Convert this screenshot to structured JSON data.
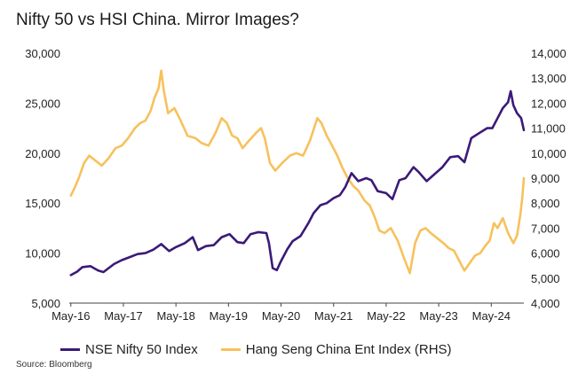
{
  "title": "Nifty 50 vs HSI China. Mirror Images?",
  "source": "Source: Bloomberg",
  "chart_data": {
    "type": "line",
    "title": "Nifty 50 vs HSI China. Mirror Images?",
    "x_ticks": [
      "May-16",
      "May-17",
      "May-18",
      "May-19",
      "May-20",
      "May-21",
      "May-22",
      "May-23",
      "May-24"
    ],
    "x_range": [
      2016.3,
      2024.95
    ],
    "y_left": {
      "range": [
        5000,
        30000
      ],
      "ticks": [
        "5,000",
        "10,000",
        "15,000",
        "20,000",
        "25,000",
        "30,000"
      ],
      "tick_values": [
        5000,
        10000,
        15000,
        20000,
        25000,
        30000
      ]
    },
    "y_right": {
      "range": [
        4000,
        14000
      ],
      "ticks": [
        "4,000",
        "5,000",
        "6,000",
        "7,000",
        "8,000",
        "9,000",
        "10,000",
        "11,000",
        "12,000",
        "13,000",
        "14,000"
      ],
      "tick_values": [
        4000,
        5000,
        6000,
        7000,
        8000,
        9000,
        10000,
        11000,
        12000,
        13000,
        14000
      ]
    },
    "grid": false,
    "legend_position": "bottom",
    "series": [
      {
        "name": "NSE Nifty 50 Index",
        "axis": "left",
        "color": "#3b1a78",
        "points": [
          [
            2016.33,
            7800
          ],
          [
            2016.45,
            8150
          ],
          [
            2016.55,
            8600
          ],
          [
            2016.7,
            8700
          ],
          [
            2016.85,
            8250
          ],
          [
            2016.95,
            8100
          ],
          [
            2017.05,
            8500
          ],
          [
            2017.15,
            8900
          ],
          [
            2017.3,
            9300
          ],
          [
            2017.45,
            9600
          ],
          [
            2017.6,
            9900
          ],
          [
            2017.75,
            10000
          ],
          [
            2017.9,
            10350
          ],
          [
            2018.05,
            10900
          ],
          [
            2018.2,
            10200
          ],
          [
            2018.33,
            10600
          ],
          [
            2018.5,
            11000
          ],
          [
            2018.65,
            11600
          ],
          [
            2018.75,
            10300
          ],
          [
            2018.9,
            10700
          ],
          [
            2019.05,
            10800
          ],
          [
            2019.2,
            11600
          ],
          [
            2019.35,
            11900
          ],
          [
            2019.5,
            11100
          ],
          [
            2019.62,
            11000
          ],
          [
            2019.75,
            11900
          ],
          [
            2019.9,
            12100
          ],
          [
            2020.05,
            12000
          ],
          [
            2020.1,
            11000
          ],
          [
            2020.17,
            8500
          ],
          [
            2020.25,
            8300
          ],
          [
            2020.33,
            9200
          ],
          [
            2020.45,
            10400
          ],
          [
            2020.55,
            11200
          ],
          [
            2020.7,
            11700
          ],
          [
            2020.85,
            13000
          ],
          [
            2020.95,
            14000
          ],
          [
            2021.08,
            14800
          ],
          [
            2021.2,
            15000
          ],
          [
            2021.33,
            15500
          ],
          [
            2021.45,
            15800
          ],
          [
            2021.55,
            16600
          ],
          [
            2021.67,
            18000
          ],
          [
            2021.8,
            17200
          ],
          [
            2021.95,
            17500
          ],
          [
            2022.05,
            17300
          ],
          [
            2022.17,
            16200
          ],
          [
            2022.33,
            16000
          ],
          [
            2022.45,
            15400
          ],
          [
            2022.58,
            17300
          ],
          [
            2022.7,
            17500
          ],
          [
            2022.85,
            18600
          ],
          [
            2022.95,
            18100
          ],
          [
            2023.1,
            17200
          ],
          [
            2023.25,
            17900
          ],
          [
            2023.4,
            18600
          ],
          [
            2023.55,
            19600
          ],
          [
            2023.7,
            19700
          ],
          [
            2023.82,
            19100
          ],
          [
            2023.95,
            21500
          ],
          [
            2024.1,
            22000
          ],
          [
            2024.25,
            22500
          ],
          [
            2024.35,
            22500
          ],
          [
            2024.45,
            23500
          ],
          [
            2024.55,
            24500
          ],
          [
            2024.65,
            25100
          ],
          [
            2024.7,
            26200
          ],
          [
            2024.75,
            24800
          ],
          [
            2024.82,
            24000
          ],
          [
            2024.9,
            23500
          ],
          [
            2024.95,
            22300
          ]
        ]
      },
      {
        "name": "Hang Seng China Ent Index (RHS)",
        "axis": "right",
        "color": "#f7c15c",
        "points": [
          [
            2016.33,
            8300
          ],
          [
            2016.4,
            8600
          ],
          [
            2016.48,
            9000
          ],
          [
            2016.58,
            9600
          ],
          [
            2016.68,
            9900
          ],
          [
            2016.8,
            9700
          ],
          [
            2016.92,
            9500
          ],
          [
            2017.05,
            9800
          ],
          [
            2017.18,
            10200
          ],
          [
            2017.3,
            10300
          ],
          [
            2017.42,
            10600
          ],
          [
            2017.55,
            11000
          ],
          [
            2017.65,
            11200
          ],
          [
            2017.75,
            11300
          ],
          [
            2017.85,
            11700
          ],
          [
            2017.92,
            12200
          ],
          [
            2018.0,
            12600
          ],
          [
            2018.05,
            13300
          ],
          [
            2018.1,
            12500
          ],
          [
            2018.18,
            11600
          ],
          [
            2018.3,
            11800
          ],
          [
            2018.42,
            11300
          ],
          [
            2018.55,
            10700
          ],
          [
            2018.7,
            10600
          ],
          [
            2018.82,
            10400
          ],
          [
            2018.95,
            10300
          ],
          [
            2019.08,
            10800
          ],
          [
            2019.2,
            11400
          ],
          [
            2019.3,
            11200
          ],
          [
            2019.4,
            10700
          ],
          [
            2019.5,
            10600
          ],
          [
            2019.6,
            10200
          ],
          [
            2019.72,
            10500
          ],
          [
            2019.85,
            10800
          ],
          [
            2019.95,
            11000
          ],
          [
            2020.02,
            10600
          ],
          [
            2020.12,
            9600
          ],
          [
            2020.22,
            9300
          ],
          [
            2020.35,
            9600
          ],
          [
            2020.5,
            9900
          ],
          [
            2020.62,
            10000
          ],
          [
            2020.75,
            9900
          ],
          [
            2020.88,
            10500
          ],
          [
            2021.02,
            11400
          ],
          [
            2021.1,
            11200
          ],
          [
            2021.2,
            10700
          ],
          [
            2021.3,
            10300
          ],
          [
            2021.4,
            9900
          ],
          [
            2021.5,
            9400
          ],
          [
            2021.6,
            9000
          ],
          [
            2021.7,
            8700
          ],
          [
            2021.8,
            8500
          ],
          [
            2021.92,
            8100
          ],
          [
            2022.02,
            7900
          ],
          [
            2022.12,
            7400
          ],
          [
            2022.2,
            6900
          ],
          [
            2022.3,
            6800
          ],
          [
            2022.42,
            7000
          ],
          [
            2022.55,
            6500
          ],
          [
            2022.67,
            5800
          ],
          [
            2022.78,
            5200
          ],
          [
            2022.88,
            6400
          ],
          [
            2022.98,
            6900
          ],
          [
            2023.08,
            7000
          ],
          [
            2023.18,
            6800
          ],
          [
            2023.3,
            6600
          ],
          [
            2023.42,
            6400
          ],
          [
            2023.52,
            6200
          ],
          [
            2023.62,
            6100
          ],
          [
            2023.72,
            5700
          ],
          [
            2023.82,
            5300
          ],
          [
            2023.92,
            5600
          ],
          [
            2024.02,
            5900
          ],
          [
            2024.12,
            6000
          ],
          [
            2024.22,
            6300
          ],
          [
            2024.3,
            6500
          ],
          [
            2024.38,
            7200
          ],
          [
            2024.45,
            7000
          ],
          [
            2024.55,
            7400
          ],
          [
            2024.65,
            6800
          ],
          [
            2024.75,
            6400
          ],
          [
            2024.82,
            6700
          ],
          [
            2024.88,
            7500
          ],
          [
            2024.92,
            8200
          ],
          [
            2024.95,
            9000
          ]
        ]
      }
    ]
  }
}
